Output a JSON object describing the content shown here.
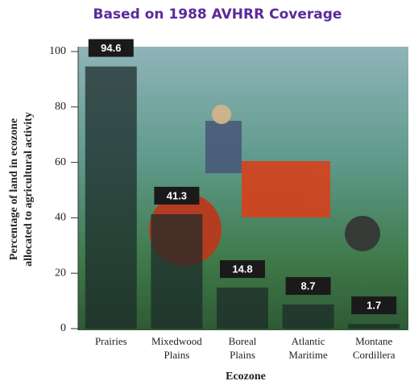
{
  "chart_data": {
    "type": "bar",
    "title": "Based on 1988 AVHRR Coverage",
    "xlabel": "Ecozone",
    "ylabel": [
      "Percentage of land in ecozone",
      "allocated to agricultural activity"
    ],
    "categories": [
      "Prairies",
      "Mixedwood Plains",
      "Boreal Plains",
      "Atlantic Maritime",
      "Montane Cordillera"
    ],
    "values": [
      94.6,
      41.3,
      14.8,
      8.7,
      1.7
    ],
    "color": "#1c2a2a",
    "ylim": [
      0,
      100
    ],
    "yticks": [
      0,
      20,
      40,
      60,
      80,
      100
    ]
  }
}
